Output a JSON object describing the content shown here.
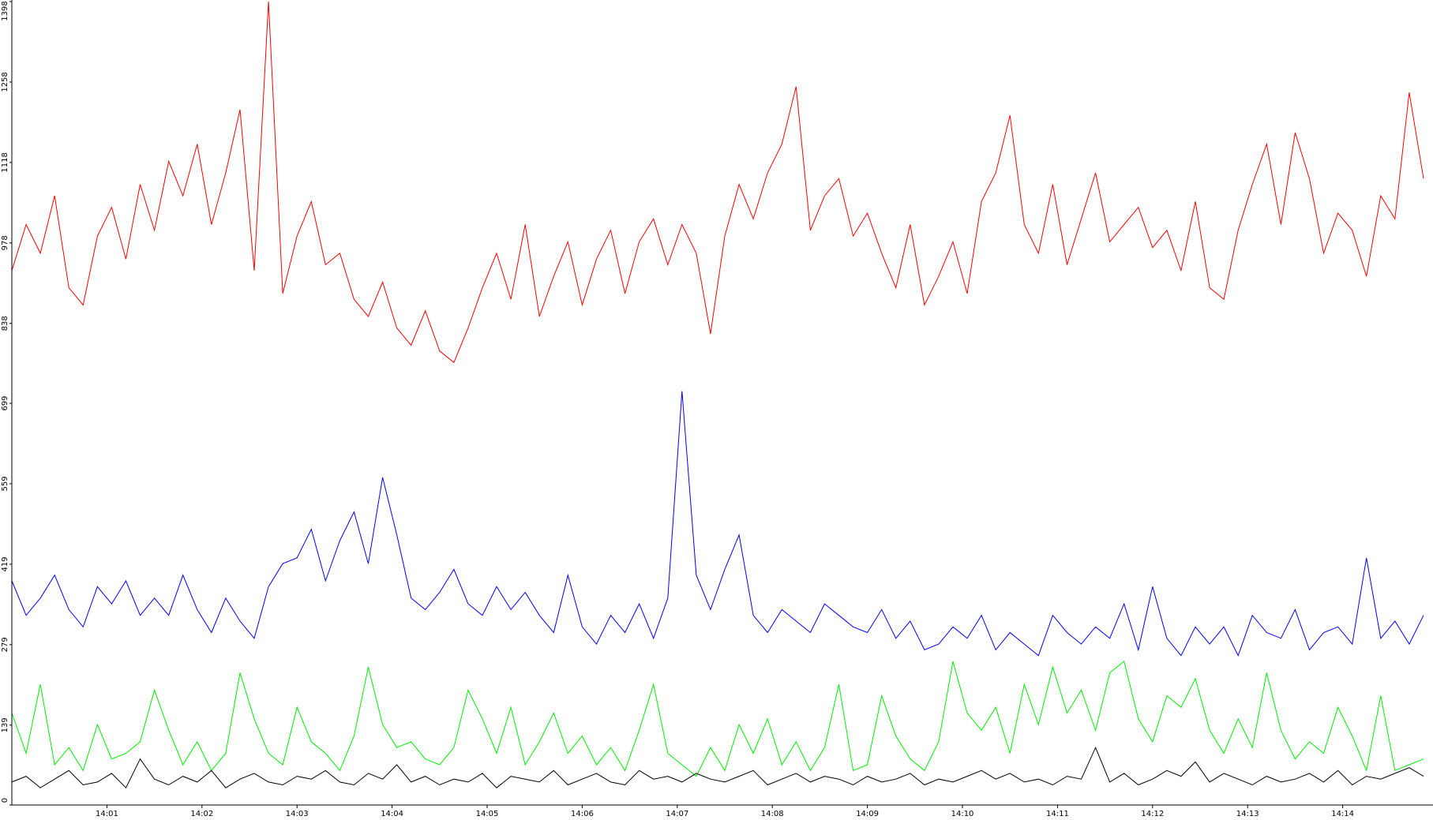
{
  "chart_data": {
    "type": "line",
    "x": [
      0,
      0.15,
      0.3,
      0.45,
      0.6,
      0.75,
      0.9,
      1.05,
      1.2,
      1.35,
      1.5,
      1.65,
      1.8,
      1.95,
      2.1,
      2.25,
      2.4,
      2.55,
      2.7,
      2.85,
      3,
      3.15,
      3.3,
      3.45,
      3.6,
      3.75,
      3.9,
      4.05,
      4.2,
      4.35,
      4.5,
      4.65,
      4.8,
      4.95,
      5.1,
      5.25,
      5.4,
      5.55,
      5.7,
      5.85,
      6,
      6.15,
      6.3,
      6.45,
      6.6,
      6.75,
      6.9,
      7.05,
      7.2,
      7.35,
      7.5,
      7.65,
      7.8,
      7.95,
      8.1,
      8.25,
      8.4,
      8.55,
      8.7,
      8.85,
      9,
      9.15,
      9.3,
      9.45,
      9.6,
      9.75,
      9.9,
      10.05,
      10.2,
      10.35,
      10.5,
      10.65,
      10.8,
      10.95,
      11.1,
      11.25,
      11.4,
      11.55,
      11.7,
      11.85,
      12,
      12.15,
      12.3,
      12.45,
      12.6,
      12.75,
      12.9,
      13.05,
      13.2,
      13.35,
      13.5,
      13.65,
      13.8,
      13.95,
      14.1,
      14.25,
      14.4,
      14.55,
      14.7,
      14.85
    ],
    "series": [
      {
        "color": "#ff0000",
        "values": [
          930,
          1010,
          960,
          1060,
          900,
          870,
          990,
          1040,
          950,
          1080,
          1000,
          1120,
          1060,
          1150,
          1010,
          1100,
          1210,
          930,
          1398,
          890,
          990,
          1050,
          940,
          960,
          880,
          850,
          910,
          830,
          800,
          860,
          790,
          770,
          830,
          900,
          960,
          880,
          1010,
          850,
          920,
          980,
          870,
          950,
          1000,
          890,
          980,
          1020,
          940,
          1010,
          960,
          820,
          990,
          1080,
          1020,
          1100,
          1150,
          1250,
          1000,
          1060,
          1090,
          990,
          1030,
          960,
          900,
          1010,
          870,
          920,
          980,
          890,
          1050,
          1100,
          1200,
          1010,
          960,
          1080,
          940,
          1020,
          1100,
          980,
          1010,
          1040,
          970,
          1000,
          930,
          1050,
          900,
          880,
          1000,
          1080,
          1150,
          1010,
          1170,
          1090,
          960,
          1030,
          1000,
          920,
          1060,
          1020,
          1240,
          1090
        ]
      },
      {
        "color": "#0000ff",
        "values": [
          390,
          330,
          360,
          400,
          340,
          310,
          380,
          350,
          390,
          330,
          360,
          330,
          400,
          340,
          300,
          360,
          320,
          290,
          380,
          420,
          430,
          480,
          390,
          460,
          510,
          420,
          570,
          470,
          360,
          340,
          370,
          410,
          350,
          330,
          380,
          340,
          370,
          330,
          300,
          400,
          310,
          280,
          330,
          300,
          350,
          290,
          360,
          720,
          400,
          340,
          410,
          470,
          330,
          300,
          340,
          320,
          300,
          350,
          330,
          310,
          300,
          340,
          290,
          320,
          270,
          280,
          310,
          290,
          330,
          270,
          300,
          280,
          260,
          330,
          300,
          280,
          310,
          290,
          350,
          270,
          380,
          290,
          260,
          310,
          280,
          310,
          260,
          330,
          300,
          290,
          340,
          270,
          300,
          310,
          280,
          430,
          290,
          320,
          280,
          330
        ]
      },
      {
        "color": "#00ee00",
        "values": [
          160,
          90,
          210,
          70,
          100,
          60,
          140,
          80,
          90,
          110,
          200,
          130,
          70,
          110,
          60,
          90,
          230,
          150,
          90,
          70,
          170,
          110,
          90,
          60,
          120,
          240,
          140,
          100,
          110,
          80,
          70,
          100,
          200,
          150,
          90,
          170,
          70,
          110,
          160,
          90,
          120,
          70,
          100,
          60,
          130,
          210,
          90,
          70,
          50,
          100,
          60,
          140,
          90,
          150,
          70,
          110,
          60,
          100,
          210,
          60,
          70,
          190,
          120,
          80,
          60,
          110,
          250,
          160,
          130,
          170,
          90,
          210,
          140,
          240,
          160,
          200,
          130,
          230,
          250,
          150,
          110,
          190,
          170,
          220,
          130,
          90,
          150,
          100,
          230,
          130,
          80,
          110,
          90,
          170,
          120,
          60,
          190,
          60,
          70,
          80
        ]
      },
      {
        "color": "#000000",
        "values": [
          40,
          50,
          30,
          45,
          60,
          35,
          40,
          55,
          30,
          80,
          45,
          35,
          50,
          40,
          60,
          30,
          45,
          55,
          40,
          35,
          50,
          45,
          60,
          40,
          35,
          55,
          45,
          70,
          40,
          50,
          35,
          45,
          40,
          55,
          30,
          50,
          45,
          40,
          60,
          35,
          45,
          55,
          40,
          35,
          60,
          45,
          50,
          40,
          55,
          45,
          40,
          50,
          60,
          35,
          45,
          55,
          40,
          50,
          45,
          35,
          50,
          40,
          45,
          55,
          35,
          45,
          40,
          50,
          60,
          45,
          55,
          40,
          45,
          35,
          50,
          45,
          100,
          40,
          55,
          35,
          45,
          60,
          50,
          75,
          40,
          55,
          45,
          35,
          50,
          40,
          45,
          55,
          40,
          60,
          35,
          50,
          45,
          55,
          65,
          50
        ]
      }
    ],
    "xlim": [
      0,
      14.95
    ],
    "xticks": [
      {
        "value": 1,
        "label": "14:01"
      },
      {
        "value": 2,
        "label": "14:02"
      },
      {
        "value": 3,
        "label": "14:03"
      },
      {
        "value": 4,
        "label": "14:04"
      },
      {
        "value": 5,
        "label": "14:05"
      },
      {
        "value": 6,
        "label": "14:06"
      },
      {
        "value": 7,
        "label": "14:07"
      },
      {
        "value": 8,
        "label": "14:08"
      },
      {
        "value": 9,
        "label": "14:09"
      },
      {
        "value": 10,
        "label": "14:10"
      },
      {
        "value": 11,
        "label": "14:11"
      },
      {
        "value": 12,
        "label": "14:12"
      },
      {
        "value": 13,
        "label": "14:13"
      },
      {
        "value": 14,
        "label": "14:14"
      }
    ],
    "ylim": [
      0,
      1398
    ],
    "yticks": [
      0,
      139,
      279,
      419,
      559,
      699,
      838,
      978,
      1118,
      1258,
      1398
    ]
  }
}
